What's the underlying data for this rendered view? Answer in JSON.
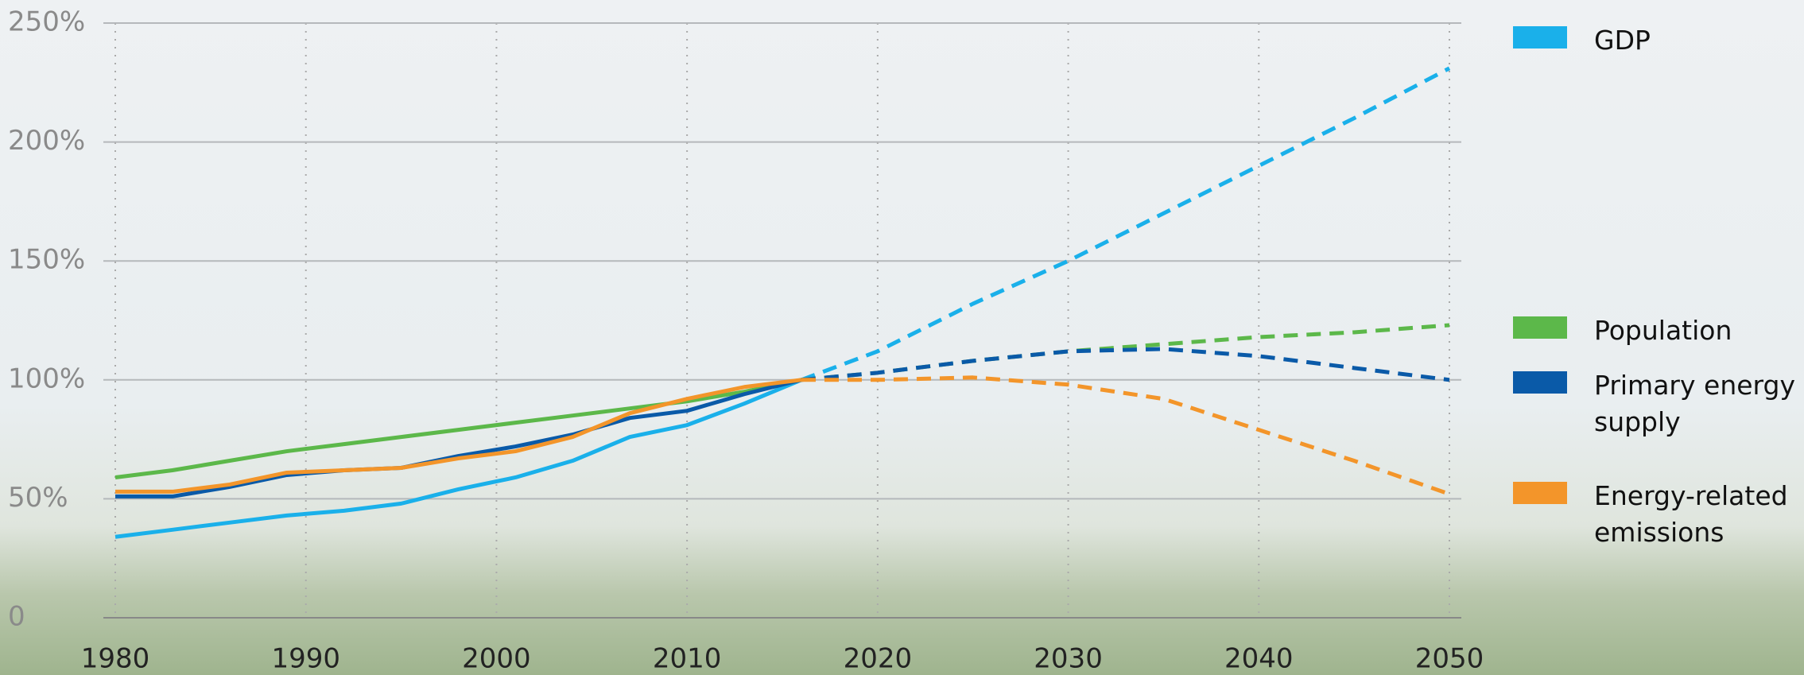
{
  "chart_data": {
    "type": "line",
    "x": [
      1980,
      1983,
      1986,
      1989,
      1992,
      1995,
      1998,
      2001,
      2004,
      2007,
      2010,
      2013,
      2016,
      2020,
      2025,
      2030,
      2035,
      2040,
      2045,
      2050
    ],
    "series": [
      {
        "name": "GDP",
        "color": "#1ab0ea",
        "values": [
          34,
          37,
          40,
          43,
          45,
          48,
          54,
          59,
          66,
          76,
          81,
          90,
          100,
          null,
          null,
          null,
          null,
          null,
          null,
          null
        ],
        "projection": [
          null,
          null,
          null,
          null,
          null,
          null,
          null,
          null,
          null,
          null,
          null,
          null,
          100,
          112,
          132,
          150,
          170,
          190,
          210,
          231
        ]
      },
      {
        "name": "Population",
        "color": "#5cb84a",
        "values": [
          59,
          62,
          66,
          70,
          73,
          76,
          79,
          82,
          85,
          88,
          91,
          95,
          100,
          null,
          null,
          null,
          null,
          null,
          null,
          null
        ],
        "projection": [
          null,
          null,
          null,
          null,
          null,
          null,
          null,
          null,
          null,
          null,
          null,
          null,
          100,
          103,
          108,
          112,
          115,
          118,
          120,
          123
        ]
      },
      {
        "name": "Primary energy supply",
        "color": "#0a5aa8",
        "values": [
          51,
          51,
          55,
          60,
          62,
          63,
          68,
          72,
          77,
          84,
          87,
          94,
          100,
          null,
          null,
          null,
          null,
          null,
          null,
          null
        ],
        "projection": [
          null,
          null,
          null,
          null,
          null,
          null,
          null,
          null,
          null,
          null,
          null,
          null,
          100,
          103,
          108,
          112,
          113,
          110,
          105,
          100
        ]
      },
      {
        "name": "Energy-related emissions",
        "color": "#f3952a",
        "values": [
          53,
          53,
          56,
          61,
          62,
          63,
          67,
          70,
          76,
          86,
          92,
          97,
          100,
          null,
          null,
          null,
          null,
          null,
          null,
          null
        ],
        "projection": [
          null,
          null,
          null,
          null,
          null,
          null,
          null,
          null,
          null,
          null,
          null,
          null,
          100,
          100,
          101,
          98,
          92,
          79,
          66,
          52
        ]
      }
    ],
    "xlim": [
      1980,
      2050
    ],
    "xticks": [
      1980,
      1990,
      2000,
      2010,
      2020,
      2030,
      2040,
      2050
    ],
    "ylim": [
      0,
      250
    ],
    "yticks": [
      0,
      {
        "value": 50,
        "label": "50%"
      },
      {
        "value": 100,
        "label": "100%"
      },
      {
        "value": 150,
        "label": "150%"
      },
      {
        "value": 200,
        "label": "200%"
      },
      {
        "value": 250,
        "label": "250%"
      }
    ],
    "grid": true
  }
}
